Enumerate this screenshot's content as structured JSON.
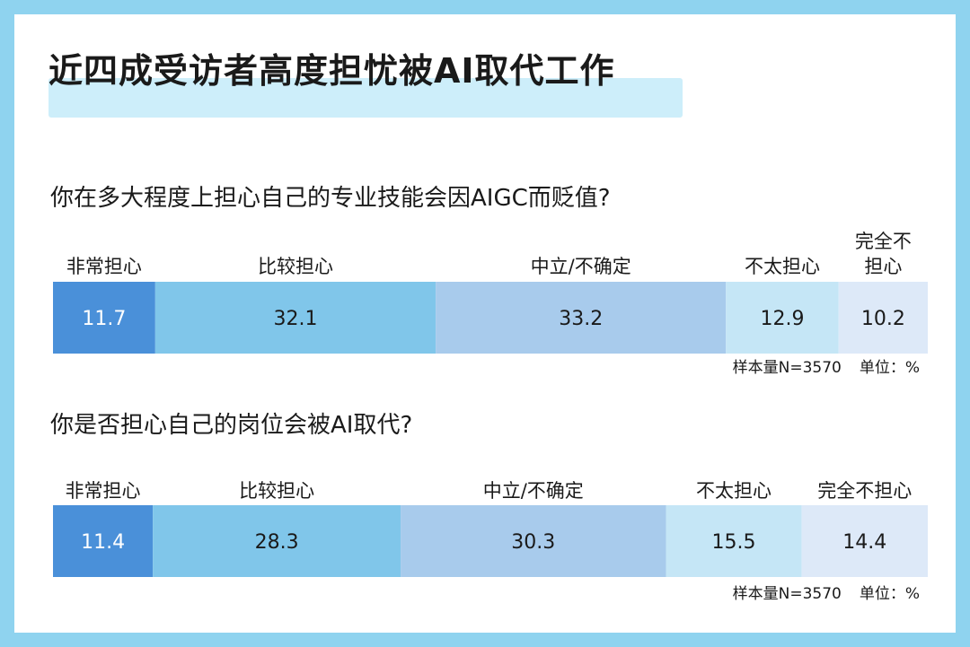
{
  "title": "近四成受访者高度担忧被AI取代工作",
  "colors": [
    "#4a90d9",
    "#80c6ea",
    "#a8cbec",
    "#c5e6f6",
    "#dde9f8"
  ],
  "sample_label": "样本量N=3570",
  "unit_label": "单位：%",
  "chart_data": [
    {
      "type": "bar",
      "orientation": "horizontal-stacked-100",
      "title": "你在多大程度上担心自己的专业技能会因AIGC而贬值?",
      "categories": [
        "非常担心",
        "比较担心",
        "中立/不确定",
        "不太担心",
        "完全不担心"
      ],
      "values": [
        11.7,
        32.1,
        33.2,
        12.9,
        10.2
      ]
    },
    {
      "type": "bar",
      "orientation": "horizontal-stacked-100",
      "title": "你是否担心自己的岗位会被AI取代?",
      "categories": [
        "非常担心",
        "比较担心",
        "中立/不确定",
        "不太担心",
        "完全不担心"
      ],
      "values": [
        11.4,
        28.3,
        30.3,
        15.5,
        14.4
      ]
    }
  ]
}
